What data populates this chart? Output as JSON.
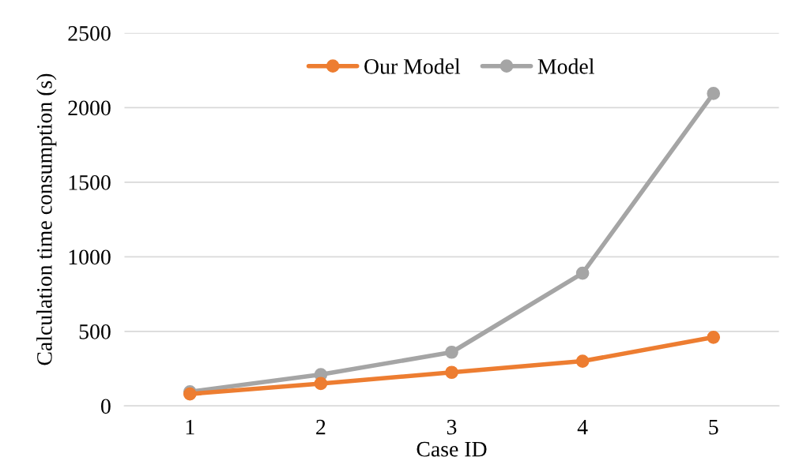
{
  "chart_data": {
    "type": "line",
    "xlabel": "Case ID",
    "ylabel": "Calculation time consumption (s)",
    "categories": [
      "1",
      "2",
      "3",
      "4",
      "5"
    ],
    "series": [
      {
        "name": "Our Model",
        "color": "#ed7d31",
        "values": [
          80,
          150,
          225,
          300,
          460
        ]
      },
      {
        "name": "Model",
        "color": "#a5a5a5",
        "values": [
          95,
          210,
          360,
          890,
          2095
        ]
      }
    ],
    "ylim": [
      0,
      2500
    ],
    "yticks": [
      0,
      500,
      1000,
      1500,
      2000,
      2500
    ],
    "grid": "y",
    "legend": "top",
    "marker": "circle",
    "line_style": "solid"
  }
}
